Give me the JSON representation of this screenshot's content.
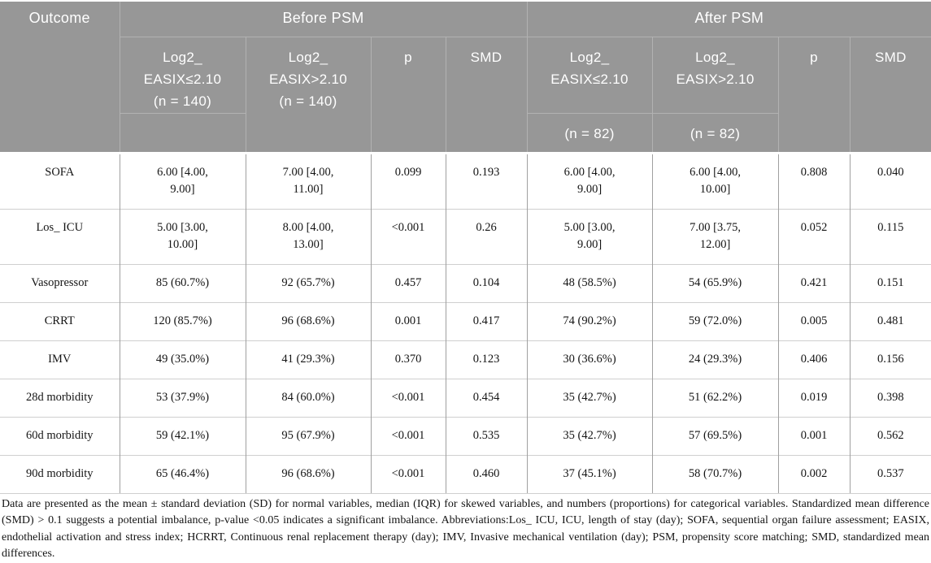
{
  "header": {
    "outcome": "Outcome",
    "before": {
      "title": "Before PSM",
      "group1": "Log2_\nEASIX≤2.10\n(n = 140)",
      "group1_sub": "",
      "group2": "Log2_\nEASIX>2.10\n(n = 140)",
      "p": "p",
      "smd": "SMD"
    },
    "after": {
      "title": "After PSM",
      "group1": "Log2_\nEASIX≤2.10",
      "group1_sub": "(n = 82)",
      "group2": "Log2_\nEASIX>2.10",
      "group2_sub": "(n = 82)",
      "p": "p",
      "smd": "SMD"
    }
  },
  "rows": [
    {
      "outcome": "SOFA",
      "b1": "6.00 [4.00,\n9.00]",
      "b2": "7.00 [4.00,\n11.00]",
      "bp": "0.099",
      "bsmd": "0.193",
      "a1": "6.00 [4.00,\n9.00]",
      "a2": "6.00 [4.00,\n10.00]",
      "ap": "0.808",
      "asmd": "0.040"
    },
    {
      "outcome": "Los_ ICU",
      "b1": "5.00 [3.00,\n10.00]",
      "b2": "8.00 [4.00,\n13.00]",
      "bp": "<0.001",
      "bsmd": "0.26",
      "a1": "5.00 [3.00,\n9.00]",
      "a2": "7.00 [3.75,\n12.00]",
      "ap": "0.052",
      "asmd": "0.115"
    },
    {
      "outcome": "Vasopressor",
      "b1": "85 (60.7%)",
      "b2": "92 (65.7%)",
      "bp": "0.457",
      "bsmd": "0.104",
      "a1": "48 (58.5%)",
      "a2": "54 (65.9%)",
      "ap": "0.421",
      "asmd": "0.151"
    },
    {
      "outcome": "CRRT",
      "b1": "120 (85.7%)",
      "b2": "96 (68.6%)",
      "bp": "0.001",
      "bsmd": "0.417",
      "a1": "74 (90.2%)",
      "a2": "59 (72.0%)",
      "ap": "0.005",
      "asmd": "0.481"
    },
    {
      "outcome": "IMV",
      "b1": "49 (35.0%)",
      "b2": "41 (29.3%)",
      "bp": "0.370",
      "bsmd": "0.123",
      "a1": "30 (36.6%)",
      "a2": "24 (29.3%)",
      "ap": "0.406",
      "asmd": "0.156"
    },
    {
      "outcome": "28d morbidity",
      "b1": "53 (37.9%)",
      "b2": "84 (60.0%)",
      "bp": "<0.001",
      "bsmd": "0.454",
      "a1": "35 (42.7%)",
      "a2": "51 (62.2%)",
      "ap": "0.019",
      "asmd": "0.398"
    },
    {
      "outcome": "60d morbidity",
      "b1": "59 (42.1%)",
      "b2": "95 (67.9%)",
      "bp": "<0.001",
      "bsmd": "0.535",
      "a1": "35 (42.7%)",
      "a2": "57 (69.5%)",
      "ap": "0.001",
      "asmd": "0.562"
    },
    {
      "outcome": "90d morbidity",
      "b1": "65 (46.4%)",
      "b2": "96 (68.6%)",
      "bp": "<0.001",
      "bsmd": "0.460",
      "a1": "37 (45.1%)",
      "a2": "58 (70.7%)",
      "ap": "0.002",
      "asmd": "0.537"
    }
  ],
  "footnote": "Data are presented as the mean ± standard deviation (SD) for normal variables, median (IQR) for skewed variables, and numbers (proportions) for categorical variables. Standardized mean difference (SMD) > 0.1 suggests a potential imbalance, p-value <0.05 indicates a significant imbalance. Abbreviations:Los_ ICU, ICU, length of stay (day); SOFA, sequential organ failure assessment; EASIX, endothelial activation and stress index; HCRRT, Continuous renal replacement therapy (day); IMV, Invasive mechanical ventilation (day); PSM, propensity score matching; SMD, standardized mean differences.",
  "colors": {
    "header_bg": "#979797",
    "header_text": "#ffffff",
    "header_border": "#b2b2b2",
    "body_vline": "#a0a0a0",
    "body_hline": "#cfcfcf",
    "body_text": "#141414"
  }
}
